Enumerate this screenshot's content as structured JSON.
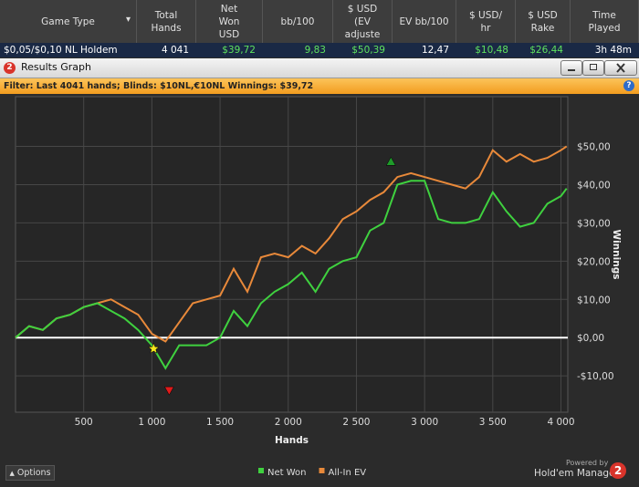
{
  "header": {
    "columns": [
      "Game Type",
      "Total\nHands",
      "Net\nWon\nUSD",
      "bb/100",
      "$ USD\n(EV\nadjuste",
      "EV bb/100",
      "$ USD/\nhr",
      "$ USD\nRake",
      "Time\nPlayed"
    ],
    "row": [
      "$0,05/$0,10 NL Holdem",
      "4 041",
      "$39,72",
      "9,83",
      "$50,39",
      "12,47",
      "$10,48",
      "$26,44",
      "3h 48m"
    ],
    "row_colors": [
      "#ffffff",
      "#ffffff",
      "#5fe35f",
      "#5fe35f",
      "#5fe35f",
      "#ffffff",
      "#5fe35f",
      "#5fe35f",
      "#ffffff"
    ]
  },
  "window": {
    "icon": "2",
    "title": "Results Graph",
    "filter": "Filter: Last 4041 hands; Blinds: $10NL,€10NL Winnings: $39,72",
    "help": "?"
  },
  "chart_data": {
    "type": "line",
    "x_label": "Hands",
    "y_label": "Winnings",
    "x": [
      0,
      100,
      200,
      300,
      400,
      500,
      600,
      700,
      800,
      900,
      1000,
      1100,
      1200,
      1300,
      1400,
      1500,
      1600,
      1700,
      1800,
      1900,
      2000,
      2100,
      2200,
      2300,
      2400,
      2500,
      2600,
      2700,
      2800,
      2900,
      3000,
      3100,
      3200,
      3300,
      3400,
      3500,
      3600,
      3700,
      3800,
      3900,
      4000,
      4041
    ],
    "series": [
      {
        "name": "Net Won",
        "color": "#3fd13f",
        "values": [
          0,
          3,
          2,
          5,
          6,
          8,
          9,
          7,
          5,
          2,
          -2,
          -8,
          -2,
          -2,
          -2,
          0,
          7,
          3,
          9,
          12,
          14,
          17,
          12,
          18,
          20,
          21,
          28,
          30,
          40,
          41,
          41,
          31,
          30,
          30,
          31,
          38,
          33,
          29,
          30,
          35,
          37,
          39
        ]
      },
      {
        "name": "All-In EV",
        "color": "#e8893a",
        "values": [
          0,
          3,
          2,
          5,
          6,
          8,
          9,
          10,
          8,
          6,
          1,
          -1,
          4,
          9,
          10,
          11,
          18,
          12,
          21,
          22,
          21,
          24,
          22,
          26,
          31,
          33,
          36,
          38,
          42,
          43,
          42,
          41,
          40,
          39,
          42,
          49,
          46,
          48,
          46,
          47,
          49,
          50
        ]
      }
    ],
    "markers": [
      {
        "x": 1013,
        "y": -2.9,
        "color": "#f5e61c",
        "shape": "star"
      },
      {
        "x": 1127,
        "y": -13.8,
        "color": "#e01b1b",
        "shape": "triangle-down"
      },
      {
        "x": 2753,
        "y": 46,
        "color": "#1f9b2a",
        "shape": "triangle-up"
      }
    ],
    "xlim": [
      0,
      4050
    ],
    "ylim": [
      -19.5,
      63
    ],
    "xticks": [
      500,
      {
        "value": 1000,
        "label": "1 000"
      },
      {
        "value": 1500,
        "label": "1 500"
      },
      {
        "value": 2000,
        "label": "2 000"
      },
      {
        "value": 2500,
        "label": "2 500"
      },
      {
        "value": 3000,
        "label": "3 000"
      },
      {
        "value": 3500,
        "label": "3 500"
      },
      {
        "value": 4000,
        "label": "4 000"
      }
    ],
    "yticks": [
      {
        "value": -10,
        "label": "-$10,00"
      },
      {
        "value": 0,
        "label": "$0,00"
      },
      {
        "value": 10,
        "label": "$10,00"
      },
      {
        "value": 20,
        "label": "$20,00"
      },
      {
        "value": 30,
        "label": "$30,00"
      },
      {
        "value": 40,
        "label": "$40,00"
      },
      {
        "value": 50,
        "label": "$50,00"
      }
    ],
    "grid": true,
    "legend": "bottom"
  },
  "footer": {
    "options": "Options",
    "powered_by": "Powered by",
    "brand": "Hold'em Manager",
    "brand_logo": "2"
  }
}
